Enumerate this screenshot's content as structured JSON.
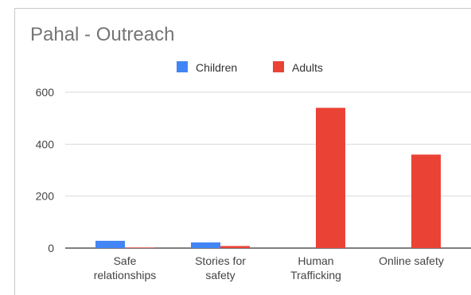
{
  "chart_data": {
    "type": "bar",
    "title": "Pahal - Outreach",
    "categories": [
      [
        "Safe",
        "relationships"
      ],
      [
        "Stories for",
        "safety"
      ],
      [
        "Human",
        "Trafficking"
      ],
      [
        "Online safety"
      ]
    ],
    "series": [
      {
        "name": "Children",
        "color": "#4285f4",
        "values": [
          28,
          22,
          0,
          0
        ]
      },
      {
        "name": "Adults",
        "color": "#ea4335",
        "values": [
          2,
          8,
          540,
          360
        ]
      }
    ],
    "yticks": [
      0,
      200,
      400,
      600
    ],
    "ylim": [
      0,
      600
    ],
    "grid": true,
    "legend_position": "top"
  }
}
